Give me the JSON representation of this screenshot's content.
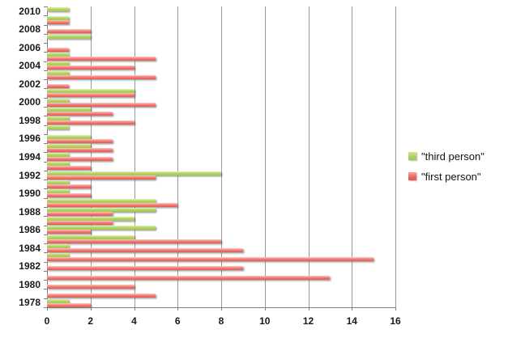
{
  "chart_data": {
    "type": "bar",
    "orientation": "horizontal",
    "title": "",
    "xlabel": "",
    "ylabel": "",
    "xlim": [
      0,
      16
    ],
    "x_ticks": [
      0,
      2,
      4,
      6,
      8,
      10,
      12,
      14,
      16
    ],
    "grid": true,
    "year_label_interval": 2,
    "legend_position": "right",
    "series_names": [
      "\"third person\"",
      "\"first person\""
    ],
    "years_top_to_bottom": [
      {
        "year": 2010,
        "third_person": 1,
        "first_person": 0
      },
      {
        "year": 2009,
        "third_person": 1,
        "first_person": 1
      },
      {
        "year": 2008,
        "third_person": 0,
        "first_person": 2
      },
      {
        "year": 2007,
        "third_person": 2,
        "first_person": 0
      },
      {
        "year": 2006,
        "third_person": 0,
        "first_person": 1
      },
      {
        "year": 2005,
        "third_person": 1,
        "first_person": 5
      },
      {
        "year": 2004,
        "third_person": 1,
        "first_person": 4
      },
      {
        "year": 2003,
        "third_person": 1,
        "first_person": 5
      },
      {
        "year": 2002,
        "third_person": 0,
        "first_person": 1
      },
      {
        "year": 2001,
        "third_person": 4,
        "first_person": 4
      },
      {
        "year": 2000,
        "third_person": 1,
        "first_person": 5
      },
      {
        "year": 1999,
        "third_person": 2,
        "first_person": 3
      },
      {
        "year": 1998,
        "third_person": 1,
        "first_person": 4
      },
      {
        "year": 1997,
        "third_person": 1,
        "first_person": 0
      },
      {
        "year": 1996,
        "third_person": 2,
        "first_person": 3
      },
      {
        "year": 1995,
        "third_person": 2,
        "first_person": 3
      },
      {
        "year": 1994,
        "third_person": 1,
        "first_person": 3
      },
      {
        "year": 1993,
        "third_person": 1,
        "first_person": 2
      },
      {
        "year": 1992,
        "third_person": 8,
        "first_person": 5
      },
      {
        "year": 1991,
        "third_person": 1,
        "first_person": 2
      },
      {
        "year": 1990,
        "third_person": 1,
        "first_person": 2
      },
      {
        "year": 1989,
        "third_person": 5,
        "first_person": 6
      },
      {
        "year": 1988,
        "third_person": 5,
        "first_person": 3
      },
      {
        "year": 1987,
        "third_person": 4,
        "first_person": 3
      },
      {
        "year": 1986,
        "third_person": 5,
        "first_person": 2
      },
      {
        "year": 1985,
        "third_person": 4,
        "first_person": 8
      },
      {
        "year": 1984,
        "third_person": 1,
        "first_person": 9
      },
      {
        "year": 1983,
        "third_person": 1,
        "first_person": 15
      },
      {
        "year": 1982,
        "third_person": 0,
        "first_person": 9
      },
      {
        "year": 1981,
        "third_person": 0,
        "first_person": 13
      },
      {
        "year": 1980,
        "third_person": 0,
        "first_person": 4
      },
      {
        "year": 1979,
        "third_person": 0,
        "first_person": 5
      },
      {
        "year": 1978,
        "third_person": 1,
        "first_person": 2
      }
    ],
    "colors": {
      "third_person": "#afd25e",
      "first_person": "#ef7169",
      "gridline": "#9a9a9a",
      "axis": "#7f7f7f",
      "label_text": "#1a1a1a"
    },
    "legend": [
      {
        "label": "\"third person\"",
        "series": "third_person"
      },
      {
        "label": "\"first person\"",
        "series": "first_person"
      }
    ]
  }
}
